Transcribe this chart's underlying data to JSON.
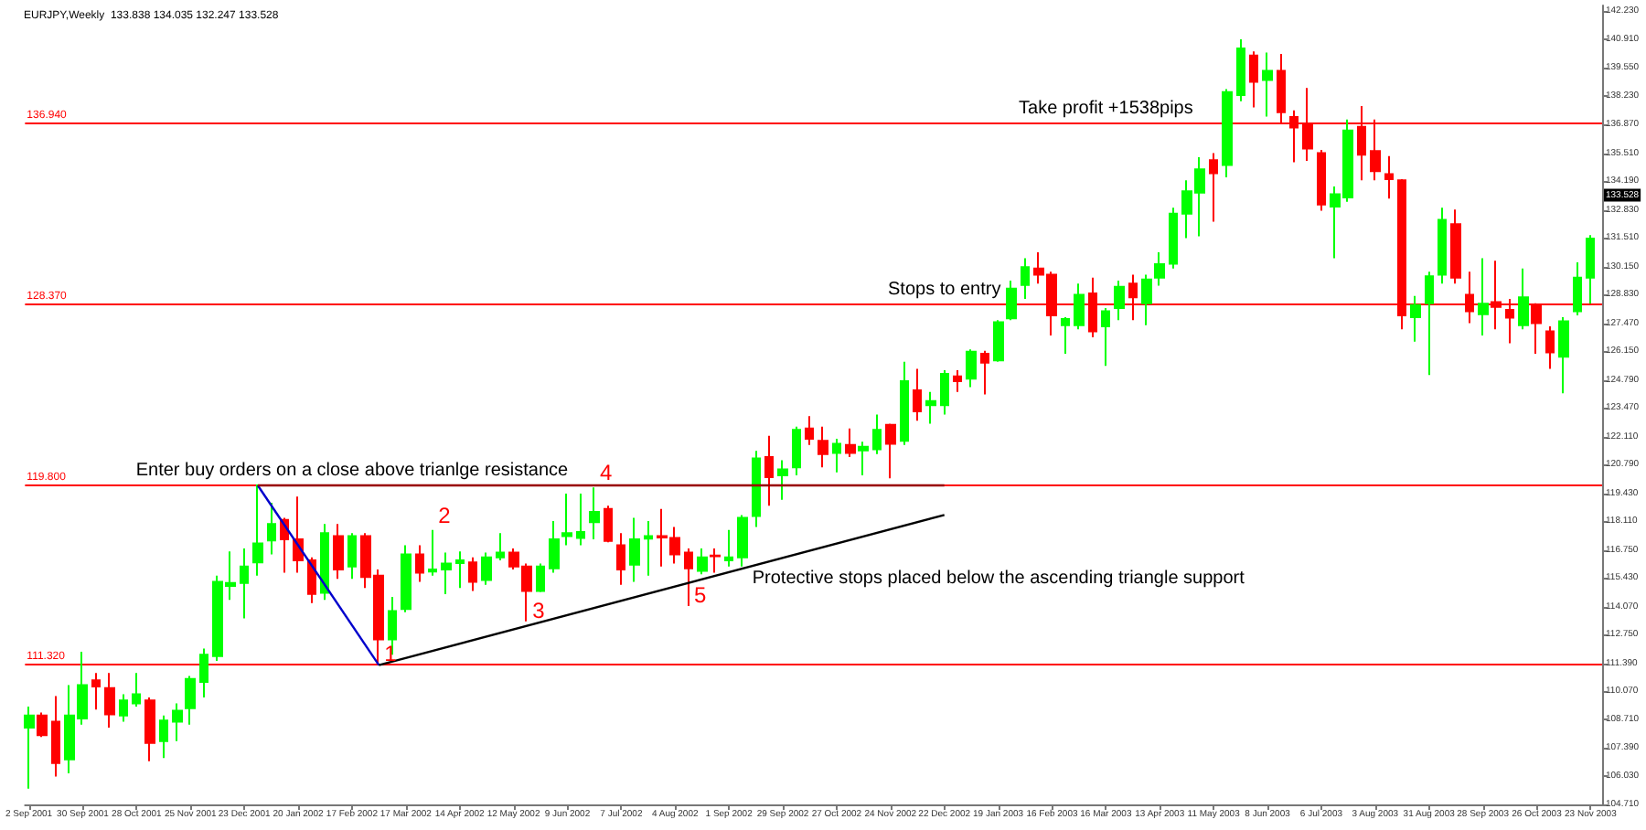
{
  "chart_data": {
    "type": "candlestick",
    "title": "EURJPY,Weekly  133.838 134.035 132.247 133.528",
    "x": [
      "2001-09-02",
      "2001-09-09",
      "2001-09-16",
      "2001-09-23",
      "2001-09-30",
      "2001-10-07",
      "2001-10-14",
      "2001-10-21",
      "2001-10-28",
      "2001-11-04",
      "2001-11-11",
      "2001-11-18",
      "2001-11-25",
      "2001-12-02",
      "2001-12-09",
      "2001-12-16",
      "2001-12-23",
      "2001-12-30",
      "2002-01-06",
      "2002-01-13",
      "2002-01-20",
      "2002-01-27",
      "2002-02-03",
      "2002-02-10",
      "2002-02-17",
      "2002-02-24",
      "2002-03-03",
      "2002-03-10",
      "2002-03-17",
      "2002-03-24",
      "2002-03-31",
      "2002-04-07",
      "2002-04-14",
      "2002-04-21",
      "2002-04-28",
      "2002-05-05",
      "2002-05-12",
      "2002-05-19",
      "2002-05-26",
      "2002-06-02",
      "2002-06-09",
      "2002-06-16",
      "2002-06-23",
      "2002-06-30",
      "2002-07-07",
      "2002-07-14",
      "2002-07-21",
      "2002-07-28",
      "2002-08-04",
      "2002-08-11",
      "2002-08-18",
      "2002-08-25",
      "2002-09-01",
      "2002-09-08",
      "2002-09-15",
      "2002-09-22",
      "2002-09-29",
      "2002-10-06",
      "2002-10-13",
      "2002-10-20",
      "2002-10-27",
      "2002-11-03",
      "2002-11-10",
      "2002-11-17",
      "2002-11-24",
      "2002-12-01",
      "2002-12-08",
      "2002-12-15",
      "2002-12-22",
      "2002-12-29",
      "2003-01-05",
      "2003-01-12",
      "2003-01-19",
      "2003-01-26",
      "2003-02-02",
      "2003-02-09",
      "2003-02-16",
      "2003-02-23",
      "2003-03-02",
      "2003-03-09",
      "2003-03-16",
      "2003-03-23",
      "2003-03-30",
      "2003-04-06",
      "2003-04-13",
      "2003-04-20",
      "2003-04-27",
      "2003-05-04",
      "2003-05-11",
      "2003-05-18",
      "2003-05-25",
      "2003-06-01",
      "2003-06-08",
      "2003-06-15",
      "2003-06-22",
      "2003-06-29",
      "2003-07-06",
      "2003-07-13",
      "2003-07-20",
      "2003-07-27",
      "2003-08-03",
      "2003-08-10",
      "2003-08-17",
      "2003-08-24",
      "2003-08-31",
      "2003-09-07",
      "2003-09-14",
      "2003-09-21",
      "2003-09-28",
      "2003-10-05",
      "2003-10-12",
      "2003-10-19",
      "2003-10-26",
      "2003-11-02",
      "2003-11-09",
      "2003-11-16",
      "2003-11-23"
    ],
    "ohlc": [
      [
        108.34,
        109.34,
        105.46,
        108.91
      ],
      [
        108.91,
        109.06,
        107.9,
        107.99
      ],
      [
        108.62,
        109.83,
        106.03,
        106.67
      ],
      [
        106.84,
        110.35,
        106.18,
        108.91
      ],
      [
        108.77,
        111.93,
        108.48,
        110.35
      ],
      [
        110.58,
        110.93,
        109.2,
        110.29
      ],
      [
        110.21,
        110.93,
        108.34,
        108.97
      ],
      [
        108.91,
        109.92,
        108.62,
        109.63
      ],
      [
        109.49,
        110.93,
        109.34,
        109.92
      ],
      [
        109.63,
        109.77,
        106.75,
        107.62
      ],
      [
        107.7,
        108.91,
        106.9,
        108.68
      ],
      [
        108.62,
        109.49,
        107.7,
        109.14
      ],
      [
        109.26,
        110.78,
        108.48,
        110.64
      ],
      [
        110.5,
        112.08,
        109.77,
        111.79
      ],
      [
        111.73,
        115.53,
        111.5,
        115.24
      ],
      [
        115.04,
        116.68,
        114.38,
        115.18
      ],
      [
        115.18,
        116.82,
        113.51,
        115.96
      ],
      [
        116.16,
        119.84,
        115.53,
        117.05
      ],
      [
        117.2,
        118.98,
        116.54,
        117.97
      ],
      [
        118.17,
        118.26,
        115.67,
        117.25
      ],
      [
        117.25,
        119.27,
        115.67,
        116.25
      ],
      [
        116.25,
        116.39,
        114.23,
        114.67
      ],
      [
        114.72,
        117.97,
        114.38,
        117.54
      ],
      [
        117.4,
        117.97,
        115.38,
        115.82
      ],
      [
        115.96,
        117.54,
        115.38,
        117.4
      ],
      [
        117.4,
        117.54,
        114.95,
        115.47
      ],
      [
        115.53,
        115.82,
        111.32,
        112.51
      ],
      [
        112.51,
        114.52,
        111.79,
        113.86
      ],
      [
        113.95,
        116.97,
        113.8,
        116.54
      ],
      [
        116.54,
        116.97,
        115.24,
        115.67
      ],
      [
        115.72,
        117.69,
        115.53,
        115.82
      ],
      [
        115.82,
        116.62,
        114.66,
        116.1
      ],
      [
        116.13,
        116.68,
        114.95,
        116.25
      ],
      [
        116.16,
        116.39,
        114.81,
        115.24
      ],
      [
        115.33,
        116.62,
        115.1,
        116.39
      ],
      [
        116.39,
        117.54,
        116.25,
        116.62
      ],
      [
        116.62,
        116.82,
        115.82,
        115.96
      ],
      [
        115.96,
        116.1,
        113.37,
        114.81
      ],
      [
        114.81,
        116.1,
        114.75,
        115.96
      ],
      [
        115.88,
        118.11,
        115.67,
        117.25
      ],
      [
        117.4,
        119.41,
        116.97,
        117.54
      ],
      [
        117.31,
        119.41,
        116.97,
        117.6
      ],
      [
        118.06,
        119.7,
        117.25,
        118.55
      ],
      [
        118.69,
        118.84,
        117.11,
        117.17
      ],
      [
        116.97,
        117.54,
        115.1,
        115.82
      ],
      [
        116.05,
        118.26,
        115.24,
        117.25
      ],
      [
        117.28,
        118.11,
        115.53,
        117.4
      ],
      [
        117.4,
        118.69,
        115.96,
        117.34
      ],
      [
        117.31,
        117.83,
        116.1,
        116.54
      ],
      [
        116.62,
        116.82,
        114.09,
        115.88
      ],
      [
        115.76,
        116.82,
        115.59,
        116.39
      ],
      [
        116.48,
        116.82,
        115.67,
        116.45
      ],
      [
        116.25,
        117.69,
        115.96,
        116.39
      ],
      [
        116.39,
        118.4,
        115.96,
        118.26
      ],
      [
        118.35,
        121.43,
        117.83,
        121.08
      ],
      [
        121.14,
        122.15,
        118.84,
        120.19
      ],
      [
        120.28,
        120.99,
        119.12,
        120.56
      ],
      [
        120.65,
        122.58,
        120.28,
        122.43
      ],
      [
        122.49,
        123.07,
        121.71,
        122.0
      ],
      [
        121.91,
        122.58,
        120.65,
        121.28
      ],
      [
        121.34,
        122.0,
        120.42,
        121.77
      ],
      [
        121.71,
        122.49,
        121.14,
        121.34
      ],
      [
        121.45,
        121.86,
        120.28,
        121.63
      ],
      [
        121.51,
        123.15,
        121.28,
        122.43
      ],
      [
        122.66,
        122.72,
        120.13,
        121.77
      ],
      [
        121.91,
        125.65,
        121.71,
        124.73
      ],
      [
        124.3,
        125.31,
        122.86,
        123.3
      ],
      [
        123.59,
        124.22,
        122.72,
        123.79
      ],
      [
        123.59,
        125.25,
        123.15,
        125.08
      ],
      [
        124.96,
        125.25,
        124.22,
        124.73
      ],
      [
        124.85,
        126.23,
        124.45,
        126.12
      ],
      [
        126.03,
        126.17,
        124.1,
        125.6
      ],
      [
        125.71,
        127.61,
        125.65,
        127.52
      ],
      [
        127.7,
        129.48,
        127.61,
        129.11
      ],
      [
        129.28,
        130.55,
        128.62,
        130.12
      ],
      [
        130.06,
        130.83,
        129.34,
        129.77
      ],
      [
        129.77,
        129.91,
        126.89,
        127.84
      ],
      [
        127.38,
        127.76,
        126.03,
        127.67
      ],
      [
        127.38,
        129.34,
        127.18,
        128.82
      ],
      [
        128.88,
        129.63,
        126.81,
        127.09
      ],
      [
        127.32,
        128.19,
        125.45,
        128.04
      ],
      [
        128.19,
        129.48,
        127.61,
        129.19
      ],
      [
        129.34,
        129.77,
        127.61,
        128.7
      ],
      [
        128.42,
        129.77,
        127.38,
        129.54
      ],
      [
        129.63,
        130.83,
        129.25,
        130.26
      ],
      [
        130.29,
        132.93,
        130.06,
        132.65
      ],
      [
        132.65,
        134.23,
        131.5,
        133.71
      ],
      [
        133.65,
        135.32,
        131.58,
        134.75
      ],
      [
        135.18,
        135.52,
        132.27,
        134.57
      ],
      [
        134.95,
        138.54,
        134.37,
        138.4
      ],
      [
        138.26,
        140.9,
        137.97,
        140.47
      ],
      [
        140.13,
        140.33,
        137.68,
        138.89
      ],
      [
        138.98,
        140.27,
        137.25,
        139.41
      ],
      [
        139.41,
        140.21,
        136.96,
        137.45
      ],
      [
        137.22,
        137.54,
        135.09,
        136.73
      ],
      [
        136.88,
        138.6,
        135.15,
        135.73
      ],
      [
        135.52,
        135.67,
        132.79,
        133.08
      ],
      [
        132.99,
        133.94,
        130.55,
        133.57
      ],
      [
        133.42,
        137.11,
        133.22,
        136.59
      ],
      [
        136.76,
        137.74,
        134.23,
        135.44
      ],
      [
        135.61,
        137.11,
        134.23,
        134.66
      ],
      [
        134.52,
        135.38,
        133.37,
        134.29
      ],
      [
        134.23,
        134.29,
        127.18,
        127.84
      ],
      [
        127.76,
        128.76,
        126.6,
        128.33
      ],
      [
        128.42,
        129.91,
        125.02,
        129.69
      ],
      [
        129.77,
        132.93,
        129.34,
        132.36
      ],
      [
        132.16,
        132.85,
        129.34,
        129.63
      ],
      [
        128.82,
        129.91,
        127.47,
        128.04
      ],
      [
        127.9,
        130.55,
        126.89,
        128.39
      ],
      [
        128.47,
        130.43,
        127.18,
        128.24
      ],
      [
        128.1,
        128.62,
        126.52,
        127.73
      ],
      [
        127.38,
        130.06,
        127.18,
        128.7
      ],
      [
        128.33,
        128.42,
        126.03,
        127.47
      ],
      [
        127.09,
        127.32,
        125.31,
        126.09
      ],
      [
        125.89,
        127.76,
        124.16,
        127.56
      ],
      [
        128.04,
        130.35,
        127.84,
        129.63
      ],
      [
        129.63,
        131.64,
        128.39,
        131.47
      ]
    ],
    "colors": [
      "#00ff00",
      "#ff0000",
      "#ff0000",
      "#00ff00",
      "#00ff00",
      "#ff0000",
      "#ff0000",
      "#00ff00",
      "#00ff00",
      "#ff0000",
      "#00ff00",
      "#00ff00",
      "#00ff00",
      "#00ff00",
      "#00ff00",
      "#00ff00",
      "#00ff00",
      "#00ff00",
      "#00ff00",
      "#ff0000",
      "#ff0000",
      "#ff0000",
      "#00ff00",
      "#ff0000",
      "#00ff00",
      "#ff0000",
      "#ff0000",
      "#00ff00",
      "#00ff00",
      "#ff0000",
      "#00ff00",
      "#00ff00",
      "#00ff00",
      "#ff0000",
      "#00ff00",
      "#00ff00",
      "#ff0000",
      "#ff0000",
      "#00ff00",
      "#00ff00",
      "#00ff00",
      "#00ff00",
      "#00ff00",
      "#ff0000",
      "#ff0000",
      "#00ff00",
      "#00ff00",
      "#ff0000",
      "#ff0000",
      "#ff0000",
      "#00ff00",
      "#ff0000",
      "#00ff00",
      "#00ff00",
      "#00ff00",
      "#ff0000",
      "#00ff00",
      "#00ff00",
      "#ff0000",
      "#ff0000",
      "#00ff00",
      "#ff0000",
      "#00ff00",
      "#00ff00",
      "#ff0000",
      "#00ff00",
      "#ff0000",
      "#00ff00",
      "#00ff00",
      "#ff0000",
      "#00ff00",
      "#ff0000",
      "#00ff00",
      "#00ff00",
      "#00ff00",
      "#ff0000",
      "#ff0000",
      "#00ff00",
      "#00ff00",
      "#ff0000",
      "#00ff00",
      "#00ff00",
      "#ff0000",
      "#00ff00",
      "#00ff00",
      "#00ff00",
      "#00ff00",
      "#00ff00",
      "#ff0000",
      "#00ff00",
      "#00ff00",
      "#ff0000",
      "#00ff00",
      "#ff0000",
      "#ff0000",
      "#ff0000",
      "#ff0000",
      "#00ff00",
      "#00ff00",
      "#ff0000",
      "#ff0000",
      "#ff0000",
      "#ff0000",
      "#00ff00",
      "#00ff00",
      "#00ff00",
      "#ff0000",
      "#ff0000",
      "#00ff00",
      "#ff0000",
      "#ff0000",
      "#00ff00",
      "#ff0000",
      "#ff0000",
      "#00ff00",
      "#00ff00",
      "#00ff00"
    ],
    "series": [
      {
        "type": "line",
        "color": "#0000cc",
        "x": [
          "2001-12-30",
          "2002-03-03"
        ],
        "values": [
          119.8,
          111.3
        ]
      },
      {
        "type": "line",
        "color": "#990000",
        "x": [
          "2001-12-30",
          "2002-12-22"
        ],
        "values": [
          119.8,
          119.8
        ]
      },
      {
        "type": "line",
        "color": "#000000",
        "x": [
          "2002-03-03",
          "2002-12-22"
        ],
        "values": [
          111.3,
          118.4
        ]
      }
    ],
    "ref_lines": [
      {
        "axis": "y",
        "value": 136.94,
        "label": "136.940",
        "color": "#ff0000"
      },
      {
        "axis": "y",
        "value": 128.37,
        "label": "128.370",
        "color": "#ff0000"
      },
      {
        "axis": "y",
        "value": 119.8,
        "label": "119.800",
        "color": "#ff0000"
      },
      {
        "axis": "y",
        "value": 111.32,
        "label": "111.320",
        "color": "#ff0000"
      }
    ],
    "annotations": [
      {
        "text": "Take profit +1538pips",
        "x": "2003-03-16",
        "y": 136.94
      },
      {
        "text": "Stops to entry",
        "x": "2002-12-22",
        "y": 128.37
      },
      {
        "text": "Enter buy orders on a close above trianlge resistance",
        "x": "2002-02-17",
        "y": 119.8
      },
      {
        "text": "Protective stops placed below the ascending triangle support",
        "x": "2002-12-22",
        "y": 118.4
      },
      {
        "text": "1",
        "x": "2002-03-03",
        "y": 111.32
      },
      {
        "text": "2",
        "x": "2002-03-31",
        "y": 117.69
      },
      {
        "text": "3",
        "x": "2002-05-19",
        "y": 113.37
      },
      {
        "text": "4",
        "x": "2002-06-23",
        "y": 119.7
      },
      {
        "text": "5",
        "x": "2002-08-11",
        "y": 114.09
      },
      {
        "text": "133.528",
        "y": 133.528
      }
    ],
    "xlim": [
      "2001-08-31",
      "2003-11-29"
    ],
    "xticks": [
      {
        "value": "2001-09-02",
        "label": "2 Sep 2001"
      },
      {
        "value": "2001-09-30",
        "label": "30 Sep 2001"
      },
      {
        "value": "2001-10-28",
        "label": "28 Oct 2001"
      },
      {
        "value": "2001-11-25",
        "label": "25 Nov 2001"
      },
      {
        "value": "2001-12-23",
        "label": "23 Dec 2001"
      },
      {
        "value": "2002-01-20",
        "label": "20 Jan 2002"
      },
      {
        "value": "2002-02-17",
        "label": "17 Feb 2002"
      },
      {
        "value": "2002-03-17",
        "label": "17 Mar 2002"
      },
      {
        "value": "2002-04-14",
        "label": "14 Apr 2002"
      },
      {
        "value": "2002-05-12",
        "label": "12 May 2002"
      },
      {
        "value": "2002-06-09",
        "label": "9 Jun 2002"
      },
      {
        "value": "2002-07-07",
        "label": "7 Jul 2002"
      },
      {
        "value": "2002-08-04",
        "label": "4 Aug 2002"
      },
      {
        "value": "2002-09-01",
        "label": "1 Sep 2002"
      },
      {
        "value": "2002-09-29",
        "label": "29 Sep 2002"
      },
      {
        "value": "2002-10-27",
        "label": "27 Oct 2002"
      },
      {
        "value": "2002-11-24",
        "label": "24 Nov 2002"
      },
      {
        "value": "2002-12-22",
        "label": "22 Dec 2002"
      },
      {
        "value": "2003-01-19",
        "label": "19 Jan 2003"
      },
      {
        "value": "2003-02-16",
        "label": "16 Feb 2003"
      },
      {
        "value": "2003-03-16",
        "label": "16 Mar 2003"
      },
      {
        "value": "2003-04-13",
        "label": "13 Apr 2003"
      },
      {
        "value": "2003-05-11",
        "label": "11 May 2003"
      },
      {
        "value": "2003-06-08",
        "label": "8 Jun 2003"
      },
      {
        "value": "2003-07-06",
        "label": "6 Jul 2003"
      },
      {
        "value": "2003-08-03",
        "label": "3 Aug 2003"
      },
      {
        "value": "2003-08-31",
        "label": "31 Aug 2003"
      },
      {
        "value": "2003-09-28",
        "label": "28 Sep 2003"
      },
      {
        "value": "2003-10-26",
        "label": "26 Oct 2003"
      },
      {
        "value": "2003-11-23",
        "label": "23 Nov 2003"
      }
    ],
    "ylim": [
      104.71,
      142.5
    ],
    "yticks": [
      {
        "value": 142.23,
        "label": "142.230"
      },
      {
        "value": 140.91,
        "label": "140.910"
      },
      {
        "value": 139.55,
        "label": "139.550"
      },
      {
        "value": 138.23,
        "label": "138.230"
      },
      {
        "value": 136.87,
        "label": "136.870"
      },
      {
        "value": 135.51,
        "label": "135.510"
      },
      {
        "value": 134.19,
        "label": "134.190"
      },
      {
        "value": 132.83,
        "label": "132.830"
      },
      {
        "value": 131.51,
        "label": "131.510"
      },
      {
        "value": 130.15,
        "label": "130.150"
      },
      {
        "value": 128.83,
        "label": "128.830"
      },
      {
        "value": 127.47,
        "label": "127.470"
      },
      {
        "value": 126.15,
        "label": "126.150"
      },
      {
        "value": 124.79,
        "label": "124.790"
      },
      {
        "value": 123.47,
        "label": "123.470"
      },
      {
        "value": 122.11,
        "label": "122.110"
      },
      {
        "value": 120.79,
        "label": "120.790"
      },
      {
        "value": 119.43,
        "label": "119.430"
      },
      {
        "value": 118.11,
        "label": "118.110"
      },
      {
        "value": 116.75,
        "label": "116.750"
      },
      {
        "value": 115.43,
        "label": "115.430"
      },
      {
        "value": 114.07,
        "label": "114.070"
      },
      {
        "value": 112.75,
        "label": "112.750"
      },
      {
        "value": 111.39,
        "label": "111.390"
      },
      {
        "value": 110.07,
        "label": "110.070"
      },
      {
        "value": 108.71,
        "label": "108.710"
      },
      {
        "value": 107.39,
        "label": "107.390"
      },
      {
        "value": 106.03,
        "label": "106.030"
      },
      {
        "value": 104.71,
        "label": "104.710"
      }
    ],
    "grid": false
  }
}
